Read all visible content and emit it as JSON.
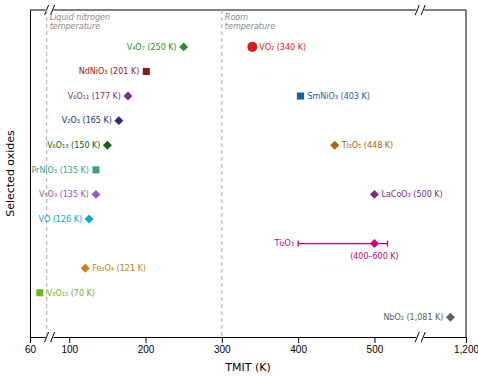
{
  "chart_data": {
    "type": "scatter",
    "xlabel": "TMIT (K)",
    "ylabel": "Selected oxides",
    "x": [
      250,
      340,
      201,
      177,
      403,
      165,
      150,
      448,
      135,
      135,
      500,
      126,
      500,
      121,
      70,
      1081
    ],
    "values": [
      13,
      13,
      12,
      11,
      11,
      10,
      9,
      9,
      8,
      7,
      7,
      6,
      5,
      4,
      3,
      2
    ],
    "point_labels": [
      "V₄O₇ (250 K)",
      "VO₂ (340 K)",
      "NdNiO₃ (201 K)",
      "V₆O₁₁ (177 K)",
      "SmNiO₃ (403 K)",
      "V₂O₃ (165 K)",
      "V₆O₁₃ (150 K)",
      "Ti₃O₅ (448 K)",
      "PrNiO₃ (135 K)",
      "V₅O₉ (135 K)",
      "LaCoO₃ (500 K)",
      "VO (126 K)",
      "Ti₂O₃",
      "Fe₃O₄ (121 K)",
      "V₈O₁₅ (70 K)",
      "NbO₂ (1,081 K)"
    ],
    "sublabels": [
      null,
      null,
      null,
      null,
      null,
      null,
      null,
      null,
      null,
      null,
      null,
      null,
      "(400–600 K)",
      null,
      null,
      null
    ],
    "xerr_low": [
      null,
      null,
      null,
      null,
      null,
      null,
      null,
      null,
      null,
      null,
      null,
      null,
      100,
      null,
      null,
      null
    ],
    "xerr_high": [
      null,
      null,
      null,
      null,
      null,
      null,
      null,
      null,
      null,
      null,
      null,
      null,
      100,
      null,
      null,
      null
    ],
    "colors": [
      "#2e8b2e",
      "#d62020",
      "#8b1a1a",
      "#7b2d8b",
      "#1a5ea8",
      "#2d2d7a",
      "#1a5c1a",
      "#b06010",
      "#3a9e8a",
      "#9b59b6",
      "#7b2d8b",
      "#00aadd",
      "#cc0077",
      "#c88010",
      "#6ab820",
      "#606060"
    ],
    "marker": [
      "diamond",
      "circle",
      "square",
      "diamond",
      "square",
      "diamond",
      "diamond",
      "diamond",
      "square",
      "diamond",
      "diamond",
      "diamond",
      "diamond",
      "diamond",
      "square",
      "diamond"
    ],
    "annotations": [
      {
        "x": 77,
        "text": "Liquid nitrogen\ntemperature"
      },
      {
        "x": 300,
        "text": "Room\ntemperature"
      }
    ],
    "xlim": [
      60,
      1200
    ],
    "xticks": [
      60,
      100,
      200,
      300,
      400,
      500,
      {
        "value": 1200,
        "label": "1,200"
      }
    ],
    "ylim": [
      1.2,
      14.5
    ],
    "tick_labels": "x",
    "grid": false
  }
}
